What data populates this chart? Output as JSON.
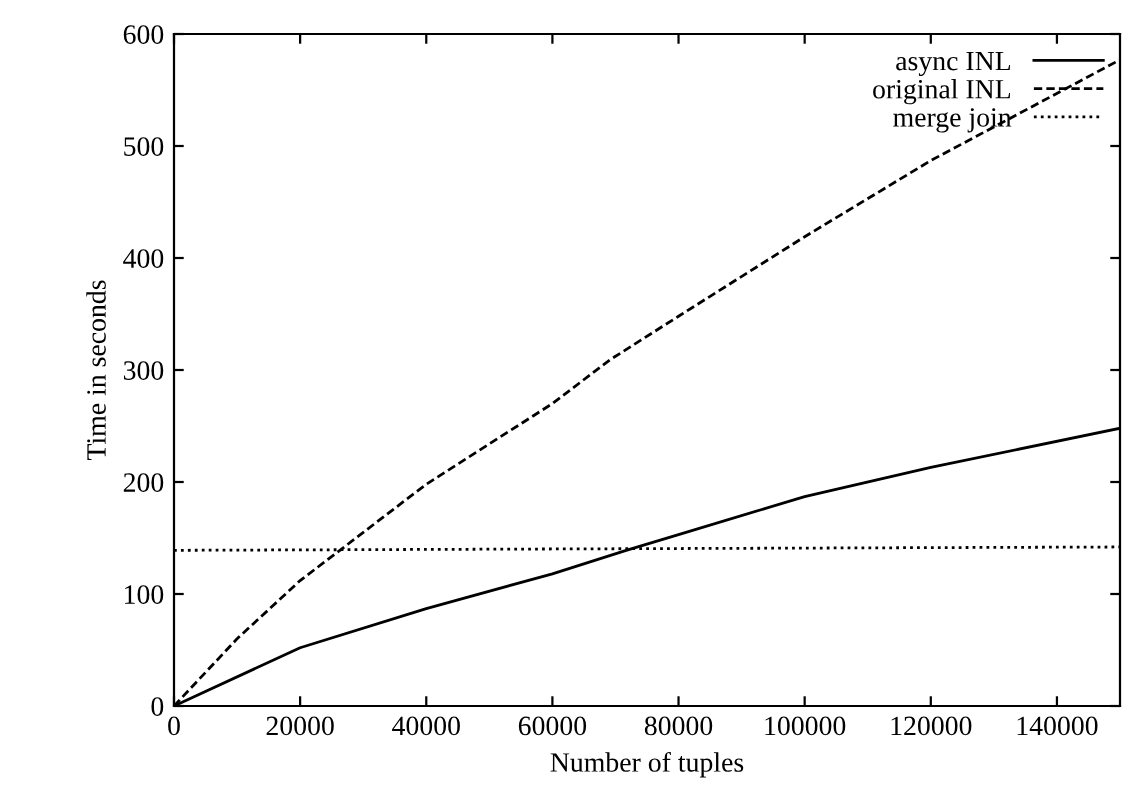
{
  "chart_data": {
    "type": "line",
    "xlabel": "Number of tuples",
    "ylabel": "Time in seconds",
    "xlim": [
      0,
      150000
    ],
    "ylim": [
      0,
      600
    ],
    "xticks": [
      0,
      20000,
      40000,
      60000,
      80000,
      100000,
      120000,
      140000
    ],
    "yticks": [
      0,
      100,
      200,
      300,
      400,
      500,
      600
    ],
    "grid": false,
    "legend": "top right",
    "marker": "none",
    "series": [
      {
        "name": "async INL",
        "color": "#000000",
        "line_style": "solid",
        "x": [
          0,
          20000,
          40000,
          60000,
          71700,
          80000,
          100000,
          120000,
          150000
        ],
        "values": [
          0,
          52,
          87,
          118,
          139,
          153,
          187,
          213,
          248
        ]
      },
      {
        "name": "original INL",
        "color": "#000000",
        "line_style": "dashed",
        "x": [
          0,
          10000,
          20000,
          26300,
          40000,
          60000,
          69100,
          80000,
          100000,
          120000,
          150000
        ],
        "values": [
          0,
          60,
          112,
          139,
          198,
          270,
          309,
          348,
          419,
          487,
          577
        ]
      },
      {
        "name": "merge join",
        "color": "#000000",
        "line_style": "dotted",
        "x": [
          0,
          150000
        ],
        "values": [
          139,
          142
        ]
      }
    ]
  }
}
